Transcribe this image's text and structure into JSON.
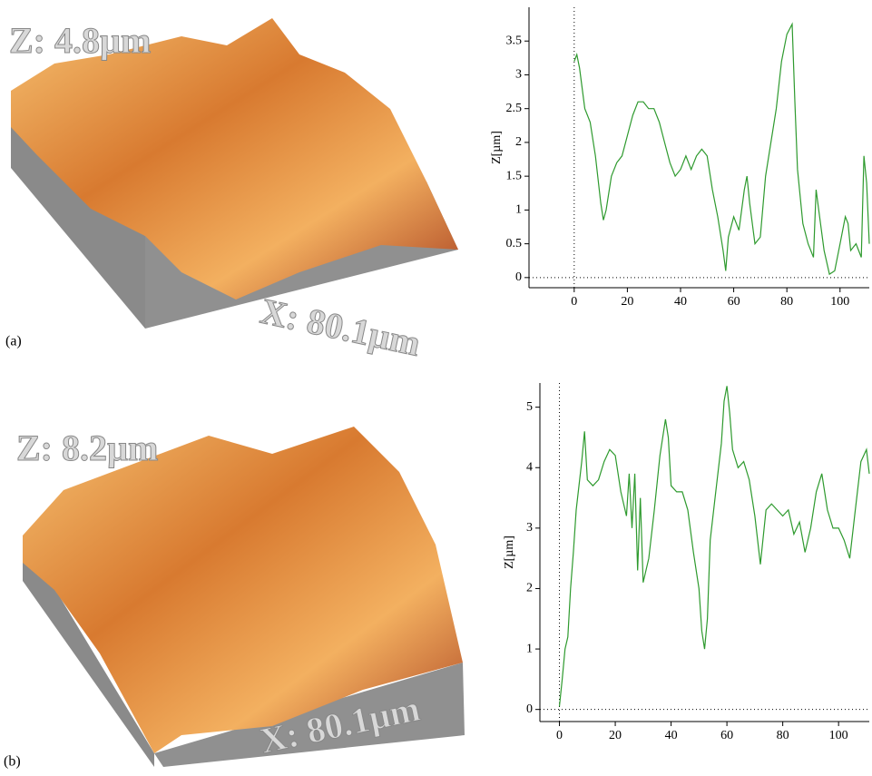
{
  "figure": {
    "panels": [
      {
        "label": "(a)",
        "z_label": "Z: 4.8µm",
        "x_label": "X: 80.1µm"
      },
      {
        "label": "(b)",
        "z_label": "Z: 8.2µm",
        "x_label": "X: 80.1µm"
      }
    ]
  },
  "chart_data": [
    {
      "type": "line",
      "y_label": "Z[µm]",
      "xlim": [
        -17,
        111
      ],
      "ylim": [
        -0.15,
        4.0
      ],
      "xticks": [
        0,
        20,
        40,
        60,
        80,
        100
      ],
      "yticks": [
        0,
        0.5,
        1,
        1.5,
        2,
        2.5,
        3,
        3.5
      ],
      "series": [
        {
          "color": "#2e9a2e",
          "x": [
            0,
            1,
            2,
            4,
            6,
            8,
            10,
            11,
            12,
            14,
            16,
            18,
            20,
            22,
            24,
            26,
            28,
            30,
            32,
            34,
            36,
            38,
            40,
            42,
            44,
            46,
            48,
            50,
            52,
            54,
            56,
            57,
            58,
            60,
            62,
            64,
            65,
            66,
            68,
            70,
            72,
            74,
            76,
            78,
            80,
            82,
            83,
            84,
            86,
            88,
            90,
            91,
            92,
            94,
            96,
            98,
            100,
            102,
            103,
            104,
            106,
            108,
            109,
            110,
            111
          ],
          "values": [
            3.2,
            3.3,
            3.1,
            2.5,
            2.3,
            1.8,
            1.1,
            0.85,
            1.0,
            1.5,
            1.7,
            1.8,
            2.1,
            2.4,
            2.6,
            2.6,
            2.5,
            2.5,
            2.3,
            2.0,
            1.7,
            1.5,
            1.6,
            1.8,
            1.6,
            1.8,
            1.9,
            1.8,
            1.3,
            0.9,
            0.4,
            0.1,
            0.6,
            0.9,
            0.7,
            1.3,
            1.5,
            1.1,
            0.5,
            0.6,
            1.5,
            2.0,
            2.5,
            3.2,
            3.6,
            3.75,
            2.6,
            1.6,
            0.8,
            0.5,
            0.3,
            1.3,
            1.0,
            0.4,
            0.05,
            0.1,
            0.5,
            0.9,
            0.8,
            0.4,
            0.5,
            0.3,
            1.8,
            1.4,
            0.5
          ]
        }
      ]
    },
    {
      "type": "line",
      "y_label": "Z[µm]",
      "xlim": [
        -7,
        111
      ],
      "ylim": [
        -0.2,
        5.4
      ],
      "xticks": [
        0,
        20,
        40,
        60,
        80,
        100
      ],
      "yticks": [
        0,
        1,
        2,
        3,
        4,
        5
      ],
      "series": [
        {
          "color": "#2e9a2e",
          "x": [
            0,
            1,
            2,
            3,
            4,
            5,
            6,
            8,
            9,
            10,
            12,
            14,
            16,
            18,
            20,
            22,
            24,
            25,
            26,
            27,
            28,
            29,
            30,
            32,
            34,
            36,
            38,
            39,
            40,
            42,
            44,
            46,
            48,
            50,
            51,
            52,
            53,
            54,
            56,
            58,
            59,
            60,
            61,
            62,
            64,
            66,
            68,
            70,
            72,
            74,
            76,
            78,
            80,
            82,
            84,
            86,
            88,
            90,
            92,
            94,
            96,
            98,
            100,
            102,
            104,
            106,
            108,
            110,
            111
          ],
          "values": [
            0.05,
            0.5,
            1.0,
            1.2,
            2.0,
            2.6,
            3.3,
            4.1,
            4.6,
            3.8,
            3.7,
            3.8,
            4.1,
            4.3,
            4.2,
            3.6,
            3.2,
            3.9,
            3.0,
            3.9,
            2.3,
            3.5,
            2.1,
            2.5,
            3.3,
            4.2,
            4.8,
            4.5,
            3.7,
            3.6,
            3.6,
            3.3,
            2.6,
            2.0,
            1.3,
            1.0,
            1.5,
            2.8,
            3.6,
            4.4,
            5.1,
            5.35,
            4.9,
            4.3,
            4.0,
            4.1,
            3.8,
            3.2,
            2.4,
            3.3,
            3.4,
            3.3,
            3.2,
            3.3,
            2.9,
            3.1,
            2.6,
            3.0,
            3.6,
            3.9,
            3.3,
            3.0,
            3.0,
            2.8,
            2.5,
            3.3,
            4.1,
            4.3,
            3.9
          ]
        }
      ]
    }
  ]
}
